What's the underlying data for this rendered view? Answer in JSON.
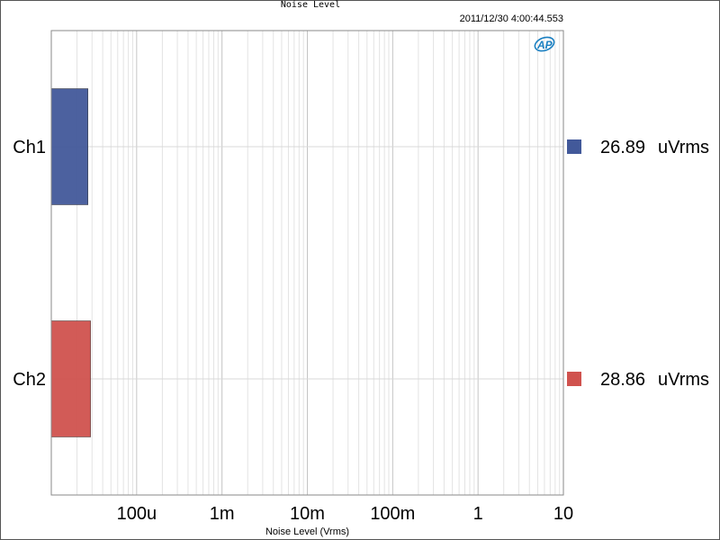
{
  "chart_data": {
    "type": "bar",
    "orientation": "horizontal",
    "title": "Noise Level",
    "timestamp": "2011/12/30 4:00:44.553",
    "xlabel": "Noise Level (Vrms)",
    "xscale": "log",
    "xlim": [
      1e-05,
      10
    ],
    "x_ticks": [
      {
        "value": 0.0001,
        "label": "100u"
      },
      {
        "value": 0.001,
        "label": "1m"
      },
      {
        "value": 0.01,
        "label": "10m"
      },
      {
        "value": 0.1,
        "label": "100m"
      },
      {
        "value": 1,
        "label": "1"
      },
      {
        "value": 10,
        "label": "10"
      }
    ],
    "categories": [
      "Ch1",
      "Ch2"
    ],
    "values": [
      2.689e-05,
      2.886e-05
    ],
    "colors": [
      "#42599a",
      "#d0524e"
    ],
    "legend": [
      {
        "value": "26.89",
        "unit": "uVrms"
      },
      {
        "value": "28.86",
        "unit": "uVrms"
      }
    ],
    "grid": true,
    "legend_position": "right"
  }
}
